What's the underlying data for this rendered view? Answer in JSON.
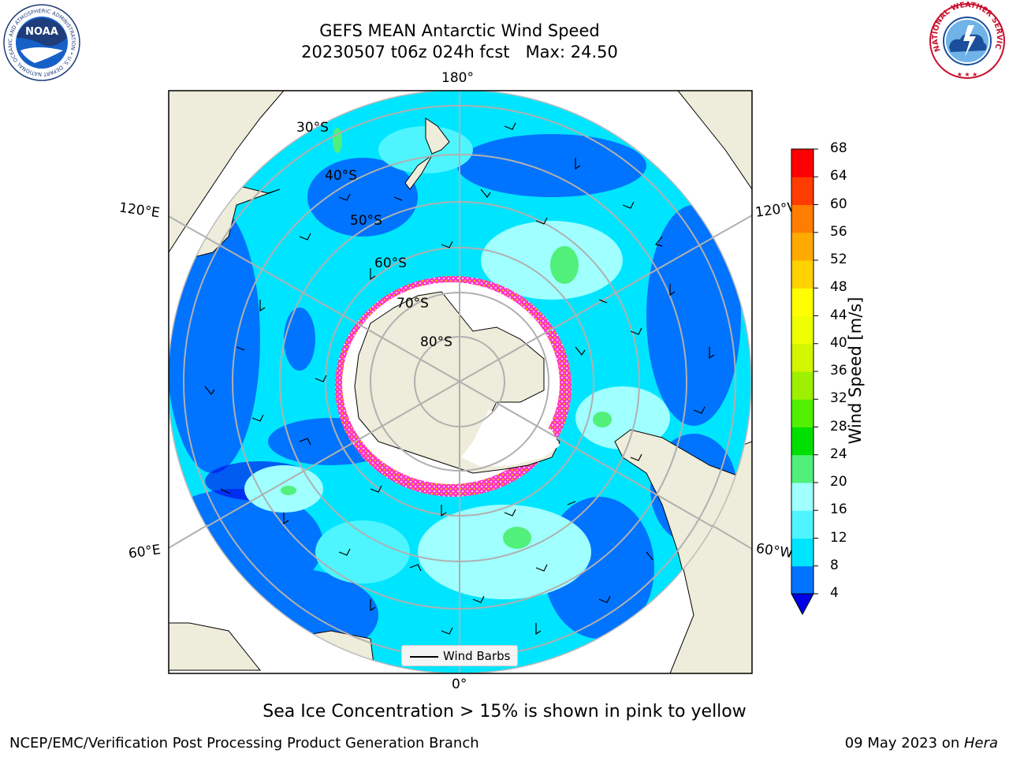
{
  "header": {
    "title_line1": "GEFS MEAN Antarctic Wind Speed",
    "title_line2": "20230507 t06z 024h fcst   Max: 24.50"
  },
  "logos": {
    "left": "noaa-logo",
    "right": "national-weather-service-logo",
    "left_text": "NOAA",
    "left_ring": "NATIONAL OCEANIC AND ATMOSPHERIC ADMINISTRATION • U.S. DEPARTMENT OF COMMERCE",
    "right_ring": "NATIONAL WEATHER SERVICE"
  },
  "map": {
    "longitude_labels": {
      "top": "180°",
      "bottom": "0°",
      "upper_left": "120°E",
      "upper_right": "120°W",
      "lower_left": "60°E",
      "lower_right": "60°W"
    },
    "latitude_labels": [
      "30°S",
      "40°S",
      "50°S",
      "60°S",
      "70°S",
      "80°S"
    ],
    "legend_label": "Wind Barbs",
    "colors": {
      "land": "#eeecda",
      "ocean_calm": "#0066ff",
      "ocean_moderate": "#00e5ff",
      "ocean_strong": "#9ffbff",
      "sea_ice_edge": "#ff33cc",
      "antarctic_ice": "#ffffff"
    }
  },
  "colorbar": {
    "label": "Wind Speed [m/s]",
    "ticks": [
      "68",
      "64",
      "60",
      "56",
      "52",
      "48",
      "44",
      "40",
      "36",
      "32",
      "28",
      "24",
      "20",
      "16",
      "12",
      "8",
      "4"
    ],
    "colors_low_to_high": [
      "#0000e6",
      "#0073ff",
      "#00e5ff",
      "#4ef5ff",
      "#a0ffff",
      "#50f07a",
      "#00e000",
      "#50f000",
      "#9ef000",
      "#d2f500",
      "#f0ff00",
      "#ffff00",
      "#ffd200",
      "#ffaa00",
      "#ff7d00",
      "#ff3c00",
      "#ff0000"
    ]
  },
  "footer": {
    "note": "Sea Ice Concentration > 15% is shown in pink to yellow",
    "credit_left": "NCEP/EMC/Verification Post Processing Product Generation Branch",
    "credit_right_date": "09 May 2023 on ",
    "credit_right_host": "Hera"
  }
}
